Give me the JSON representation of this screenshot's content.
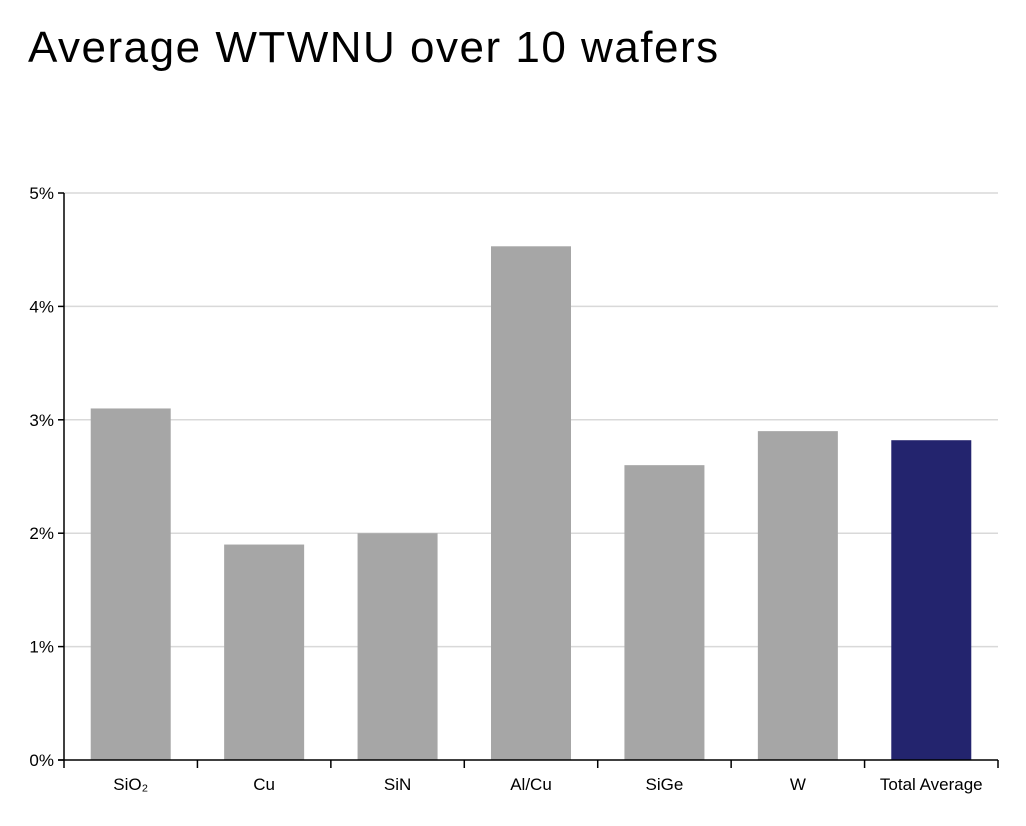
{
  "title": "Average WTWNU over 10 wafers",
  "colors": {
    "bar": "#a6a6a6",
    "highlight_bar": "#23246e",
    "gridline": "#d9d9d9",
    "axis": "#000000"
  },
  "chart_data": {
    "type": "bar",
    "title": "Average WTWNU over 10 wafers",
    "xlabel": "",
    "ylabel": "",
    "categories": [
      "SiO₂",
      "Cu",
      "SiN",
      "Al/Cu",
      "SiGe",
      "W",
      "Total Average"
    ],
    "values": [
      3.1,
      1.9,
      2.0,
      4.53,
      2.6,
      2.9,
      2.82
    ],
    "highlight_category": "Total Average",
    "ylim": [
      0,
      5
    ],
    "yticks": [
      0,
      1,
      2,
      3,
      4,
      5
    ],
    "ytick_labels": [
      "0%",
      "1%",
      "2%",
      "3%",
      "4%",
      "5%"
    ],
    "y_unit": "%",
    "grid": true,
    "legend": "none"
  }
}
